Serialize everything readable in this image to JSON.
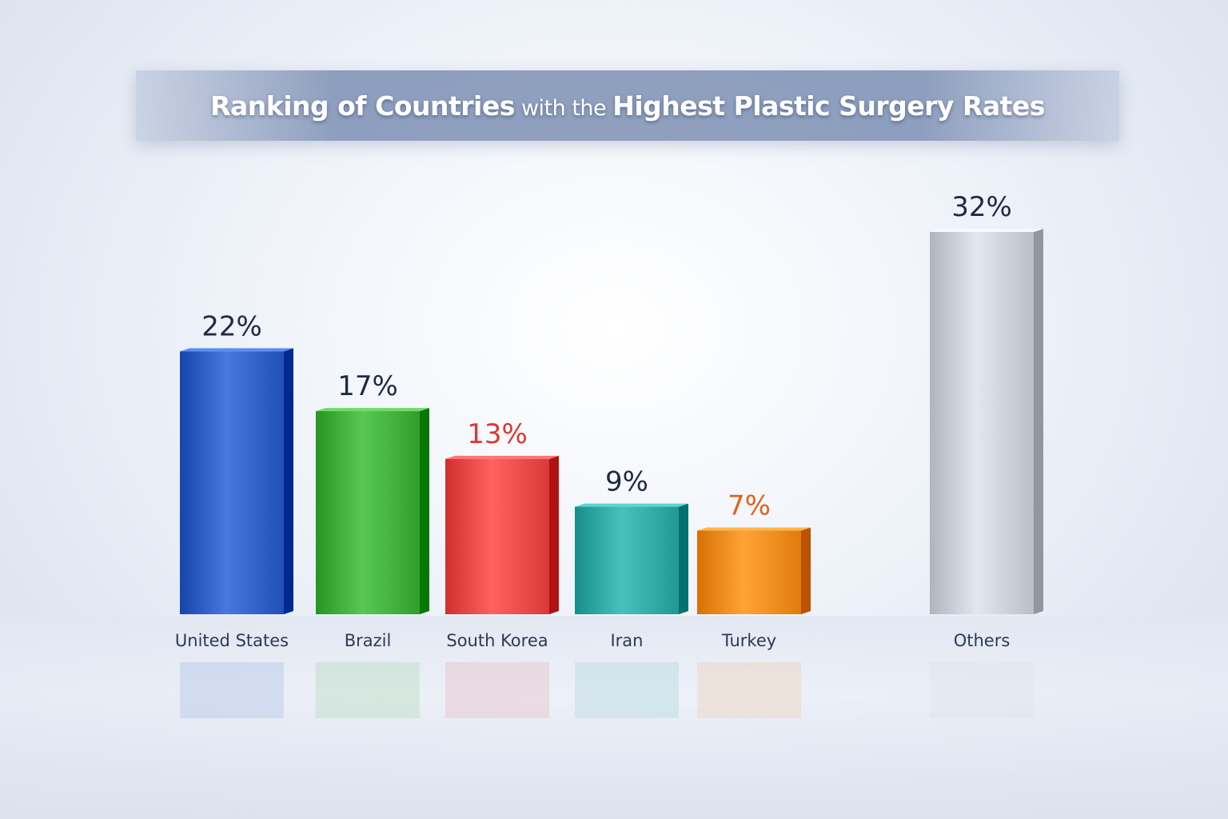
{
  "chart_data": {
    "type": "bar",
    "title": "Ranking of Countries with the Highest Plastic Surgery Rates",
    "title_parts": {
      "bold_1": "Ranking of Countries",
      "light": " with the ",
      "bold_2": "Highest Plastic Surgery Rates"
    },
    "categories": [
      "United States",
      "Brazil",
      "South Korea",
      "Iran",
      "Turkey",
      "Others"
    ],
    "values": [
      22,
      17,
      13,
      9,
      7,
      32
    ],
    "value_labels": [
      "22%",
      "17%",
      "13%",
      "9%",
      "7%",
      "32%"
    ],
    "bar_colors": [
      "#2f5fc4",
      "#3fae3a",
      "#e84848",
      "#2fa8a4",
      "#f08a1c",
      "#c9ced6"
    ],
    "label_colors": [
      "#1f2a44",
      "#1f2a44",
      "#d93a32",
      "#1f2a44",
      "#e0641a",
      "#1f2a44"
    ],
    "xlabel": "",
    "ylabel": "",
    "ylim": [
      0,
      34
    ],
    "grid": false,
    "legend": "none"
  }
}
